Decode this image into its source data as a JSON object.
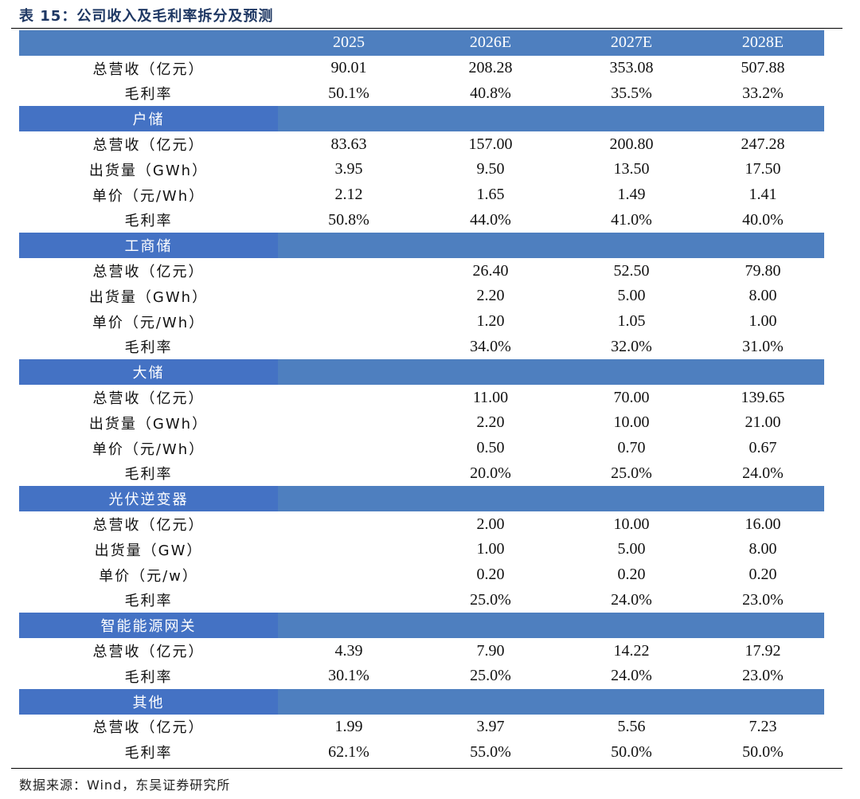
{
  "caption": "表 15：公司收入及毛利率拆分及预测",
  "table": {
    "header": [
      "",
      "2025",
      "2026E",
      "2027E",
      "2028E"
    ],
    "rows": [
      {
        "type": "data",
        "cells": [
          "总营收（亿元）",
          "90.01",
          "208.28",
          "353.08",
          "507.88"
        ]
      },
      {
        "type": "data",
        "cells": [
          "毛利率",
          "50.1%",
          "40.8%",
          "35.5%",
          "33.2%"
        ]
      },
      {
        "type": "section",
        "cells": [
          "户储"
        ]
      },
      {
        "type": "data",
        "cells": [
          "总营收（亿元）",
          "83.63",
          "157.00",
          "200.80",
          "247.28"
        ]
      },
      {
        "type": "data",
        "cells": [
          "出货量（GWh）",
          "3.95",
          "9.50",
          "13.50",
          "17.50"
        ]
      },
      {
        "type": "data",
        "cells": [
          "单价（元/Wh）",
          "2.12",
          "1.65",
          "1.49",
          "1.41"
        ]
      },
      {
        "type": "data",
        "cells": [
          "毛利率",
          "50.8%",
          "44.0%",
          "41.0%",
          "40.0%"
        ]
      },
      {
        "type": "section",
        "cells": [
          "工商储"
        ]
      },
      {
        "type": "data",
        "cells": [
          "总营收（亿元）",
          "",
          "26.40",
          "52.50",
          "79.80"
        ]
      },
      {
        "type": "data",
        "cells": [
          "出货量（GWh）",
          "",
          "2.20",
          "5.00",
          "8.00"
        ]
      },
      {
        "type": "data",
        "cells": [
          "单价（元/Wh）",
          "",
          "1.20",
          "1.05",
          "1.00"
        ]
      },
      {
        "type": "data",
        "cells": [
          "毛利率",
          "",
          "34.0%",
          "32.0%",
          "31.0%"
        ]
      },
      {
        "type": "section",
        "cells": [
          "大储"
        ]
      },
      {
        "type": "data",
        "cells": [
          "总营收（亿元）",
          "",
          "11.00",
          "70.00",
          "139.65"
        ]
      },
      {
        "type": "data",
        "cells": [
          "出货量（GWh）",
          "",
          "2.20",
          "10.00",
          "21.00"
        ]
      },
      {
        "type": "data",
        "cells": [
          "单价（元/Wh）",
          "",
          "0.50",
          "0.70",
          "0.67"
        ]
      },
      {
        "type": "data",
        "cells": [
          "毛利率",
          "",
          "20.0%",
          "25.0%",
          "24.0%"
        ]
      },
      {
        "type": "section",
        "cells": [
          "光伏逆变器"
        ]
      },
      {
        "type": "data",
        "cells": [
          "总营收（亿元）",
          "",
          "2.00",
          "10.00",
          "16.00"
        ]
      },
      {
        "type": "data",
        "cells": [
          "出货量（GW）",
          "",
          "1.00",
          "5.00",
          "8.00"
        ]
      },
      {
        "type": "data",
        "cells": [
          "单价（元/w）",
          "",
          "0.20",
          "0.20",
          "0.20"
        ]
      },
      {
        "type": "data",
        "cells": [
          "毛利率",
          "",
          "25.0%",
          "24.0%",
          "23.0%"
        ]
      },
      {
        "type": "section",
        "cells": [
          "智能能源网关"
        ]
      },
      {
        "type": "data",
        "cells": [
          "总营收（亿元）",
          "4.39",
          "7.90",
          "14.22",
          "17.92"
        ]
      },
      {
        "type": "data",
        "cells": [
          "毛利率",
          "30.1%",
          "25.0%",
          "24.0%",
          "23.0%"
        ]
      },
      {
        "type": "section",
        "cells": [
          "其他"
        ]
      },
      {
        "type": "data",
        "cells": [
          "总营收（亿元）",
          "1.99",
          "3.97",
          "5.56",
          "7.23"
        ]
      },
      {
        "type": "data",
        "cells": [
          "毛利率",
          "62.1%",
          "55.0%",
          "50.0%",
          "50.0%"
        ]
      }
    ]
  },
  "source": "数据来源：Wind，东吴证券研究所",
  "colors": {
    "header_bg": "#4e7fbf",
    "section_label_bg": "#4472c4",
    "header_text": "#ffffff"
  }
}
